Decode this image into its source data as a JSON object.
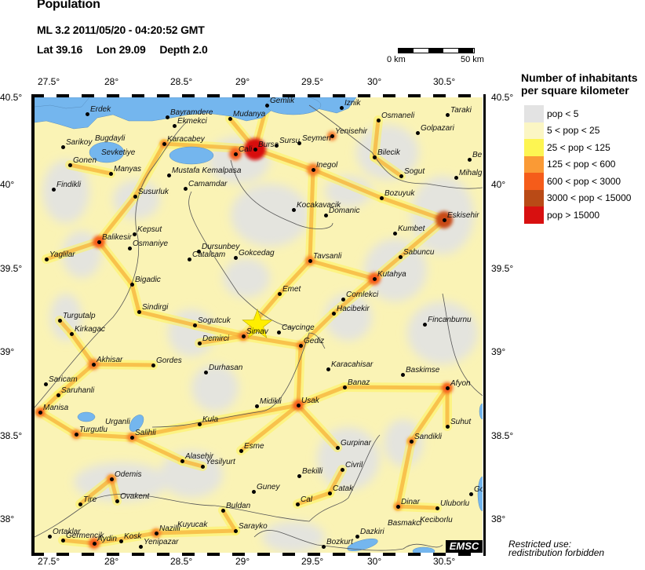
{
  "header": {
    "title": "Population",
    "event": "ML 3.2  2011/05/20 - 04:20:52 GMT",
    "lat": "Lat 39.16",
    "lon": "Lon  29.09",
    "depth": "Depth  2.0"
  },
  "scale": {
    "start": "0 km",
    "end": "50 km"
  },
  "axes": {
    "lon_ticks": [
      "27.5°",
      "28°",
      "28.5°",
      "29°",
      "29.5°",
      "30°",
      "30.5°"
    ],
    "lat_ticks": [
      "40.5°",
      "40°",
      "39.5°",
      "39°",
      "38.5°",
      "38°"
    ]
  },
  "epicenter": {
    "lat": 39.16,
    "lon": 29.09,
    "marker": "star-icon",
    "color": "#ffee00"
  },
  "legend": {
    "title": "Number of inhabitants per square kilometer",
    "items": [
      {
        "label": "pop < 5",
        "color": "#e3e3e3"
      },
      {
        "label": "5 < pop < 25",
        "color": "#fbf6c4"
      },
      {
        "label": "25 < pop < 125",
        "color": "#fdf552"
      },
      {
        "label": "125 < pop < 600",
        "color": "#fa9a35"
      },
      {
        "label": "600 < pop < 3000",
        "color": "#f55c1a"
      },
      {
        "label": "3000 < pop < 15000",
        "color": "#b94a16"
      },
      {
        "label": "pop > 15000",
        "color": "#d81010"
      }
    ]
  },
  "cities": [
    "Erdek",
    "Bayramdere",
    "Ekmekci",
    "Mudanya",
    "Gemlik",
    "Iznik",
    "Osmaneli",
    "Taraki",
    "Golpazari",
    "Yenisehir",
    "Seymen",
    "Sursu",
    "Bursa",
    "Cali",
    "Inegol",
    "Bilecik",
    "Sogut",
    "Mihalg",
    "Be",
    "Sarikoy",
    "Bugdayli",
    "Sevketiye",
    "Gonen",
    "Manyas",
    "Karacabey",
    "Mustafa Kemalpasa",
    "Findikli",
    "Camamdar",
    "Susurluk",
    "Kocakavacik",
    "Domanic",
    "Bozuyuk",
    "Eskisehir",
    "Kumbet",
    "Kepsut",
    "Balikesir",
    "Osmaniye",
    "Dursunbey",
    "Catalcam",
    "Gokcedag",
    "Tavsanli",
    "Sabuncu",
    "Yaglilar",
    "Kutahya",
    "Bigadic",
    "Emet",
    "Comlekci",
    "Sindirgi",
    "Hacibekir",
    "Turgutalp",
    "Sogutcuk",
    "Caycinge",
    "Simav",
    "Fincanburnu",
    "Kirkagac",
    "Gediz",
    "Demirci",
    "Akhisar",
    "Gordes",
    "Durhasan",
    "Karacahisar",
    "Baskimse",
    "Saricam",
    "Saruhanli",
    "Afyon",
    "Banaz",
    "Midikli",
    "Usak",
    "Manisa",
    "Kula",
    "Turgutlu",
    "Urganli",
    "Salihli",
    "Suhut",
    "Sandikli",
    "Esme",
    "Gurpinar",
    "Alasehir",
    "Yesilyurt",
    "Civril",
    "Bekilli",
    "Odemis",
    "Guney",
    "Catak",
    "Cal",
    "Dinar",
    "Uluborlu",
    "Go",
    "Tire",
    "Ovakent",
    "Buldan",
    "Sarayko",
    "Nazilli",
    "Kuyucak",
    "Dazkiri",
    "Basmakci",
    "Keciborlu",
    "Ortaklar",
    "Germencik",
    "Aydin",
    "Kosk",
    "Yenipazar",
    "Bozkurt"
  ],
  "footer": {
    "logo": "EMSC",
    "notice_1": "Restricted use:",
    "notice_2": "redistribution forbidden"
  },
  "colors": {
    "water": "#74b6ee",
    "background": "#faf3b5"
  }
}
